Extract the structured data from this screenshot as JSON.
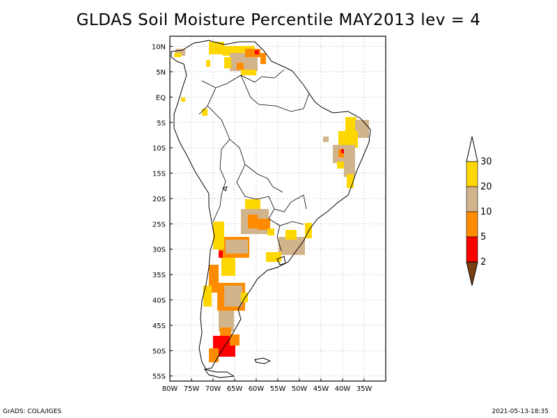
{
  "title": "GLDAS Soil Moisture Percentile MAY2013 lev = 4",
  "footer_left": "GrADS: COLA/IGES",
  "footer_right": "2021-05-13-18:35",
  "map": {
    "lon_range": [
      -80,
      -30
    ],
    "lat_range": [
      -56,
      12
    ],
    "lon_ticks": [
      {
        "value": -80,
        "label": "80W"
      },
      {
        "value": -75,
        "label": "75W"
      },
      {
        "value": -70,
        "label": "70W"
      },
      {
        "value": -65,
        "label": "65W"
      },
      {
        "value": -60,
        "label": "60W"
      },
      {
        "value": -55,
        "label": "55W"
      },
      {
        "value": -50,
        "label": "50W"
      },
      {
        "value": -45,
        "label": "45W"
      },
      {
        "value": -40,
        "label": "40W"
      },
      {
        "value": -35,
        "label": "35W"
      }
    ],
    "lat_ticks": [
      {
        "value": 10,
        "label": "10N"
      },
      {
        "value": 5,
        "label": "5N"
      },
      {
        "value": 0,
        "label": "EQ"
      },
      {
        "value": -5,
        "label": "5S"
      },
      {
        "value": -10,
        "label": "10S"
      },
      {
        "value": -15,
        "label": "15S"
      },
      {
        "value": -20,
        "label": "20S"
      },
      {
        "value": -25,
        "label": "25S"
      },
      {
        "value": -30,
        "label": "30S"
      },
      {
        "value": -35,
        "label": "35S"
      },
      {
        "value": -40,
        "label": "40S"
      },
      {
        "value": -45,
        "label": "45S"
      },
      {
        "value": -50,
        "label": "50S"
      },
      {
        "value": -55,
        "label": "55S"
      }
    ],
    "grid": true,
    "colors": {
      "below_2": "#7a3f12",
      "2_5": "#ff0000",
      "5_10": "#ff8c00",
      "10_20": "#d2b48c",
      "20_30": "#ffd700",
      "coast": "#000000",
      "grid": "#a0a0a0"
    }
  },
  "colorbar": {
    "levels": [
      "2",
      "5",
      "10",
      "20",
      "30"
    ],
    "colors": [
      "#7a3f12",
      "#ff0000",
      "#ff8c00",
      "#d2b48c",
      "#ffd700",
      "#ffffff"
    ]
  }
}
